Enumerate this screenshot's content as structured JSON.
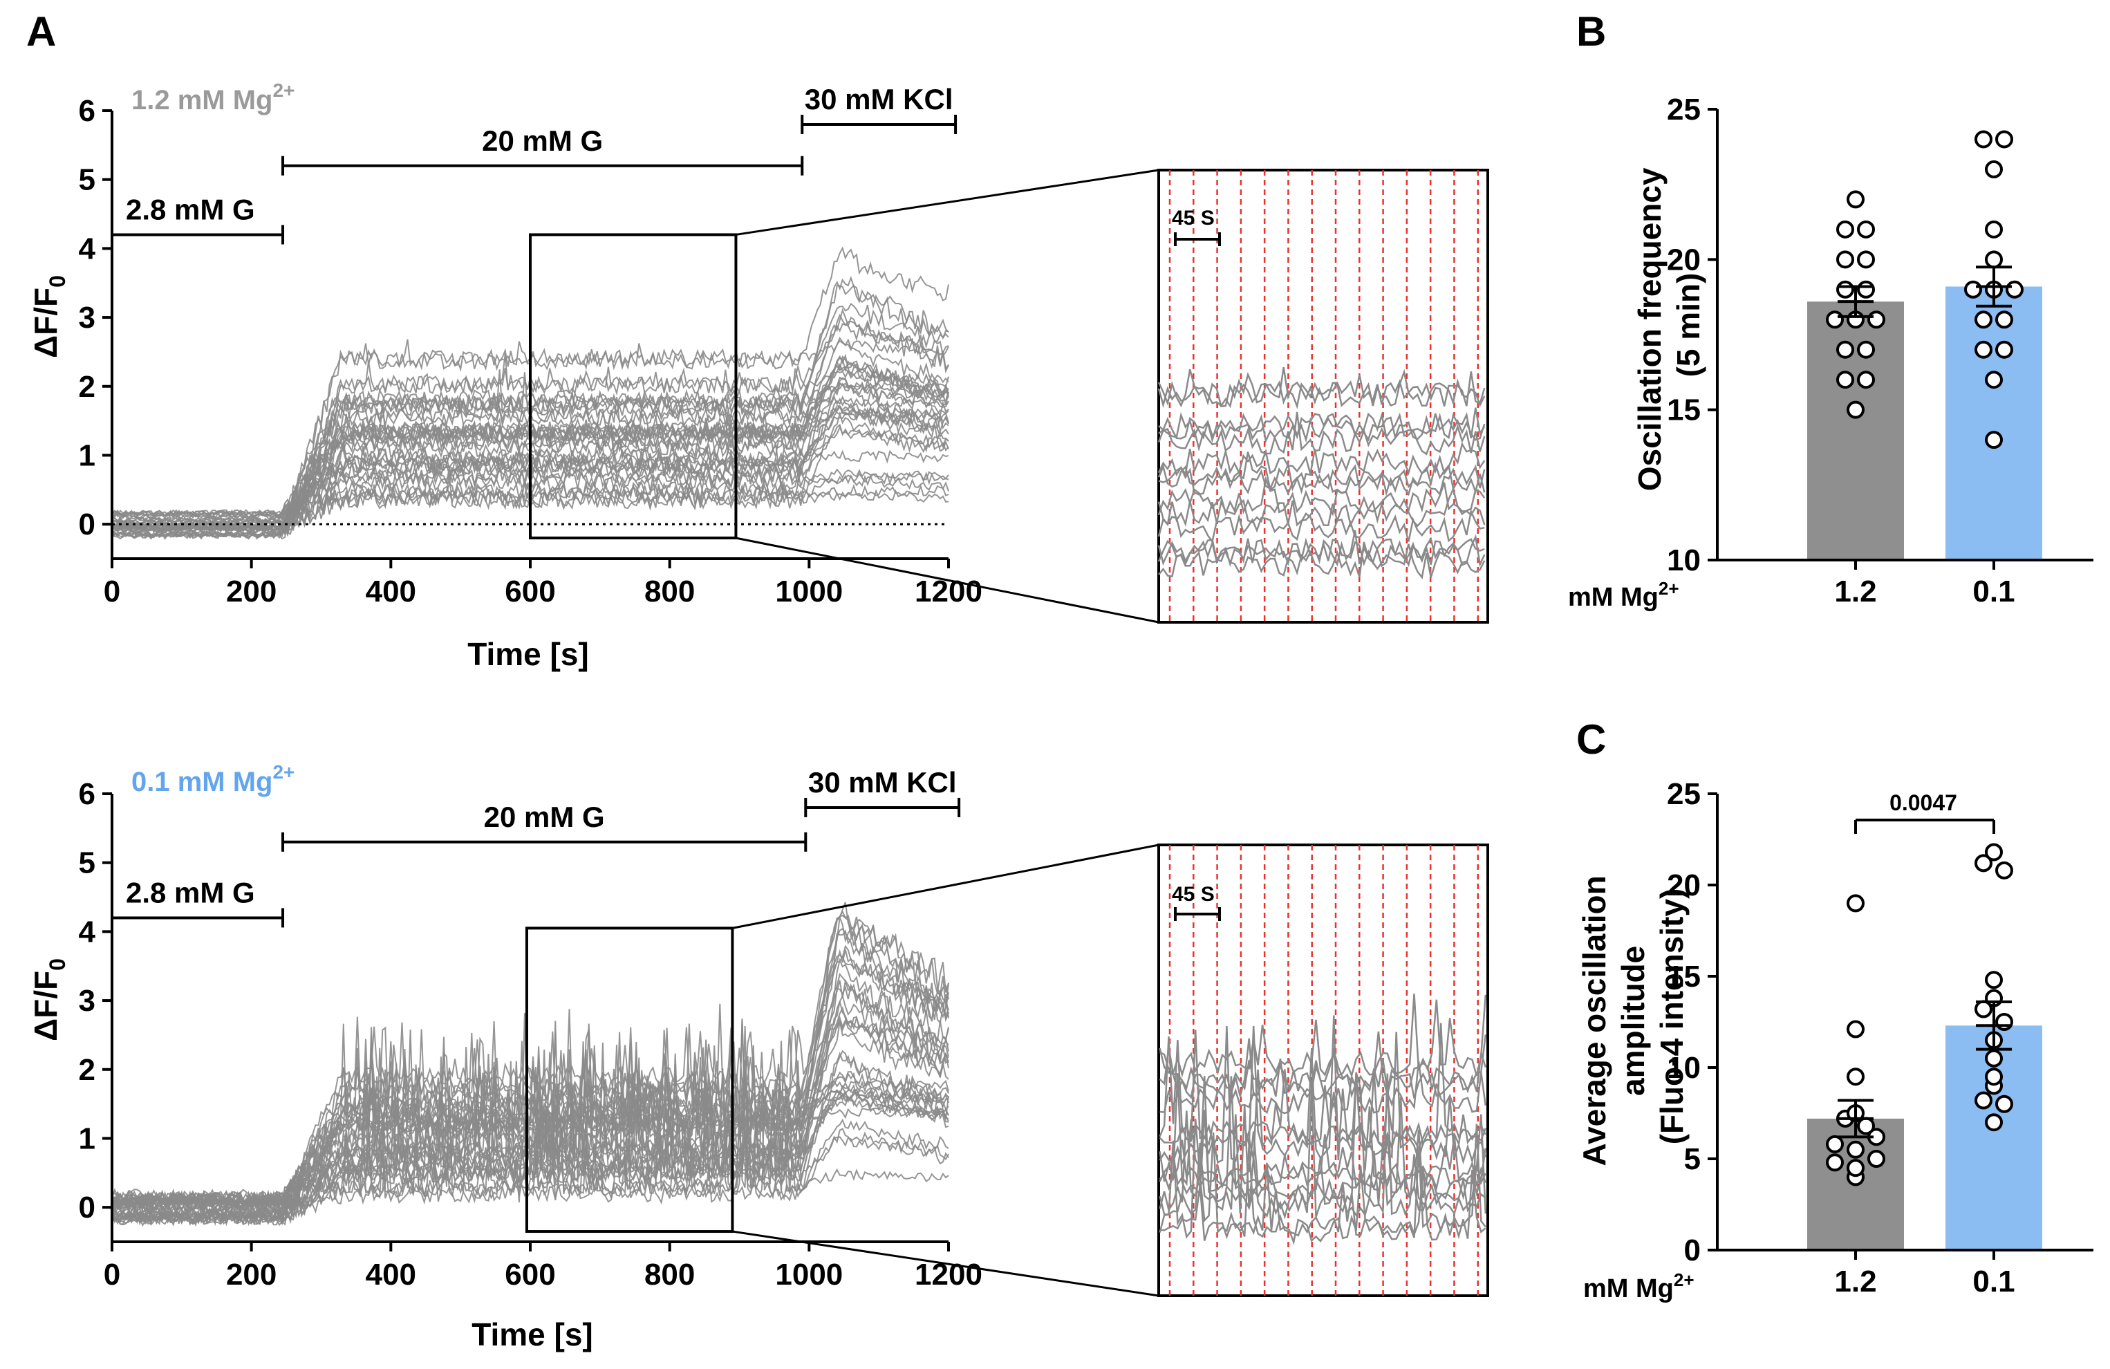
{
  "colors": {
    "gray": "#8f8f90",
    "blue": "#8cbdf2",
    "trace": "#8a8a8a",
    "red": "#e8322f",
    "blue_text": "#62a5ec",
    "gray_text": "#9a9a9a"
  },
  "panels": {
    "A": "A",
    "B": "B",
    "C": "C"
  },
  "chart_data": [
    {
      "id": "A-top",
      "type": "line",
      "condition_label": {
        "text": "1.2 mM Mg",
        "sup": "2+"
      },
      "xlabel": "Time [s]",
      "ylabel": {
        "text": "ΔF/F",
        "sub": "0"
      },
      "xlim": [
        0,
        1200
      ],
      "ylim": [
        -0.5,
        6
      ],
      "xticks": [
        "0",
        "200",
        "400",
        "600",
        "800",
        "1000",
        "1200"
      ],
      "yticks": [
        "0",
        "1",
        "2",
        "3",
        "4",
        "5",
        "6"
      ],
      "baseline_dotted": 0,
      "treatments": [
        {
          "label": "2.8 mM G",
          "x0": 0,
          "x1": 245,
          "y": 4.2
        },
        {
          "label": "20 mM G",
          "x0": 245,
          "x1": 990,
          "y": 5.2
        },
        {
          "label": "30 mM KCl",
          "x0": 990,
          "x1": 1210,
          "y": 5.8
        }
      ],
      "zoom_window": {
        "x0": 600,
        "x1": 895,
        "y0": -0.2,
        "y1": 4.2
      },
      "inset_scale_label": "45 S",
      "n_traces": 36
    },
    {
      "id": "A-bottom",
      "type": "line",
      "condition_label": {
        "text": "0.1 mM Mg",
        "sup": "2+"
      },
      "xlabel": "Time [s]",
      "ylabel": {
        "text": "ΔF/F",
        "sub": "0"
      },
      "xlim": [
        0,
        1200
      ],
      "ylim": [
        -0.5,
        6
      ],
      "xticks": [
        "0",
        "200",
        "400",
        "600",
        "800",
        "1000",
        "1200"
      ],
      "yticks": [
        "0",
        "1",
        "2",
        "3",
        "4",
        "5",
        "6"
      ],
      "treatments": [
        {
          "label": "2.8 mM G",
          "x0": 0,
          "x1": 245,
          "y": 4.2
        },
        {
          "label": "20 mM G",
          "x0": 245,
          "x1": 995,
          "y": 5.3
        },
        {
          "label": "30 mM KCl",
          "x0": 995,
          "x1": 1215,
          "y": 5.8
        }
      ],
      "zoom_window": {
        "x0": 595,
        "x1": 890,
        "y0": -0.35,
        "y1": 4.05
      },
      "inset_scale_label": "45 S",
      "n_traces": 36
    },
    {
      "id": "B",
      "type": "bar",
      "ylabel_lines": [
        "Oscillation frequency",
        "(5 min)"
      ],
      "xprefix": {
        "text": "mM Mg",
        "sup": "2+"
      },
      "categories": [
        "1.2",
        "0.1"
      ],
      "values": [
        18.6,
        19.1
      ],
      "sem": [
        0.5,
        0.65
      ],
      "ylim": [
        10,
        25
      ],
      "yticks": [
        "10",
        "15",
        "20",
        "25"
      ],
      "points": [
        [
          15,
          16,
          16,
          17,
          17,
          18,
          18,
          18,
          19,
          19,
          20,
          20,
          21,
          21,
          22
        ],
        [
          14,
          16,
          17,
          17,
          18,
          18,
          19,
          19,
          19,
          20,
          21,
          23,
          24,
          24
        ]
      ]
    },
    {
      "id": "C",
      "type": "bar",
      "ylabel_lines": [
        "Average oscillation",
        "amplitude",
        "(Fluo-4 intensity)"
      ],
      "xprefix": {
        "text": "mM Mg",
        "sup": "2+"
      },
      "categories": [
        "1.2",
        "0.1"
      ],
      "values": [
        7.2,
        12.3
      ],
      "sem": [
        1.0,
        1.3
      ],
      "ylim": [
        0,
        25
      ],
      "yticks": [
        "0",
        "5",
        "10",
        "15",
        "20",
        "25"
      ],
      "significance": "0.0047",
      "points": [
        [
          4.0,
          4.5,
          4.8,
          5.0,
          5.5,
          5.8,
          6.2,
          6.8,
          7.2,
          7.5,
          9.5,
          12.1,
          19.0
        ],
        [
          7.0,
          8.0,
          8.2,
          9.0,
          9.5,
          10.5,
          11.5,
          12.5,
          13.2,
          13.8,
          14.8,
          20.8,
          21.2,
          21.8
        ]
      ]
    }
  ]
}
